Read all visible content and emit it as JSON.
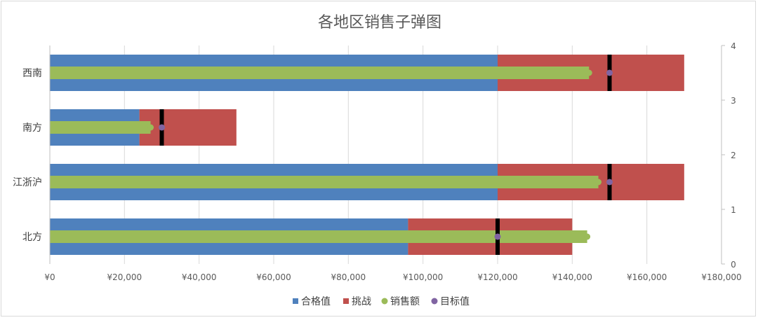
{
  "chart_data": {
    "type": "bar",
    "title": "各地区销售子弹图",
    "categories": [
      "北方",
      "江浙沪",
      "南方",
      "西南"
    ],
    "xlim": [
      0,
      180000
    ],
    "x_ticks": [
      "¥0",
      "¥20,000",
      "¥40,000",
      "¥60,000",
      "¥80,000",
      "¥100,000",
      "¥120,000",
      "¥140,000",
      "¥160,000",
      "¥180,000"
    ],
    "secondary_ylim": [
      0,
      4
    ],
    "secondary_ticks": [
      "0",
      "1",
      "2",
      "3",
      "4"
    ],
    "grid": true,
    "legend_position": "bottom",
    "series": [
      {
        "name": "合格值",
        "color": "#4f81bd",
        "values": [
          96000,
          120000,
          24000,
          120000
        ]
      },
      {
        "name": "挑战",
        "color": "#c0504d",
        "values": [
          44000,
          50000,
          26000,
          50000
        ]
      },
      {
        "name": "销售额",
        "color": "#9bbb59",
        "values": [
          144000,
          147000,
          27000,
          144500
        ]
      },
      {
        "name": "目标值",
        "color": "#8064a2",
        "values": [
          120000,
          150000,
          30000,
          150000
        ]
      }
    ]
  }
}
